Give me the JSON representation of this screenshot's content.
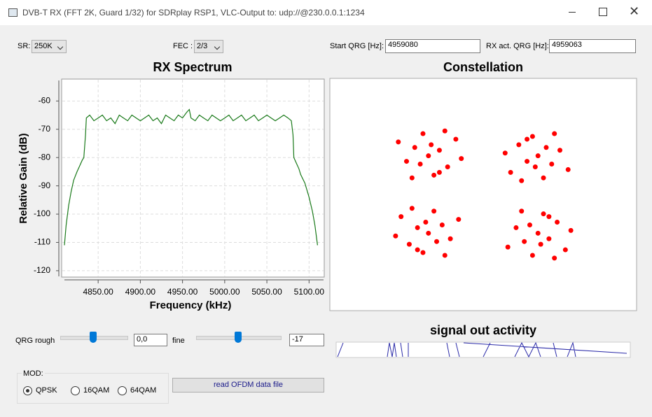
{
  "window": {
    "title": "DVB-T RX  (FFT 2K, Guard 1/32) for SDRplay RSP1, VLC-Output to: udp://@230.0.0.1:1234"
  },
  "controls": {
    "sr": {
      "label": "SR:",
      "value": "250K"
    },
    "fec": {
      "label": "FEC :",
      "value": "2/3"
    },
    "start_qrg": {
      "label": "Start QRG [Hz]:",
      "value": "4959080"
    },
    "rx_qrg": {
      "label": "RX act. QRG [Hz]:",
      "value": "4959063"
    },
    "qrg_rough": {
      "label": "QRG  rough",
      "value": "0,0"
    },
    "qrg_fine": {
      "label": "fine",
      "value": "-17"
    },
    "mod": {
      "label": "MOD:",
      "options": [
        "QPSK",
        "16QAM",
        "64QAM"
      ],
      "selected": 0
    },
    "read_button": "read OFDM data file",
    "activity_title": "signal out activity"
  },
  "spectrum": {
    "type": "line",
    "title": "RX Spectrum",
    "x_label": "Frequency (kHz)",
    "y_label": "Relative Gain (dB)",
    "x": [
      4810,
      4812,
      4815,
      4818,
      4821,
      4825,
      4828,
      4831,
      4833,
      4835,
      4836,
      4840,
      4845,
      4850,
      4855,
      4860,
      4865,
      4870,
      4875,
      4880,
      4885,
      4890,
      4895,
      4900,
      4905,
      4910,
      4915,
      4920,
      4925,
      4930,
      4935,
      4940,
      4945,
      4950,
      4955,
      4958,
      4960,
      4965,
      4970,
      4975,
      4980,
      4985,
      4990,
      4995,
      5000,
      5005,
      5010,
      5015,
      5020,
      5025,
      5030,
      5035,
      5040,
      5045,
      5050,
      5055,
      5060,
      5065,
      5070,
      5075,
      5079,
      5081,
      5082,
      5085,
      5088,
      5090,
      5095,
      5100,
      5104,
      5107,
      5110
    ],
    "series": [
      {
        "color": "#1a7a1a",
        "values": [
          -111,
          -104,
          -97,
          -92,
          -88,
          -85,
          -83,
          -81,
          -80,
          -72,
          -66,
          -65,
          -67,
          -66,
          -65,
          -67,
          -66,
          -68,
          -65,
          -66,
          -67,
          -65,
          -66,
          -67,
          -66,
          -65,
          -67,
          -66,
          -68,
          -65,
          -66,
          -67,
          -65,
          -66,
          -64,
          -63,
          -66,
          -67,
          -65,
          -66,
          -67,
          -65,
          -66,
          -67,
          -66,
          -65,
          -67,
          -66,
          -65,
          -67,
          -66,
          -65,
          -67,
          -66,
          -65,
          -66,
          -67,
          -66,
          -65,
          -66,
          -67,
          -72,
          -80,
          -82,
          -84,
          -86,
          -89,
          -94,
          -99,
          -104,
          -111
        ]
      }
    ],
    "xlim": [
      4806.7,
      5118
    ],
    "ylim": [
      -122.25,
      -52.25
    ],
    "xticks": [
      {
        "value": 4850,
        "label": "4850.00"
      },
      {
        "value": 4900,
        "label": "4900.00"
      },
      {
        "value": 4950,
        "label": "4950.00"
      },
      {
        "value": 5000,
        "label": "5000.00"
      },
      {
        "value": 5050,
        "label": "5050.00"
      },
      {
        "value": 5100,
        "label": "5100.00"
      }
    ],
    "yticks": [
      -60,
      -70,
      -80,
      -90,
      -100,
      -110,
      -120
    ],
    "grid": true
  },
  "constellation": {
    "type": "scatter",
    "title": "Constellation",
    "xlim": [
      -2.8,
      2.8
    ],
    "ylim": [
      -2.1,
      2.1
    ],
    "series": [
      {
        "color": "#ff0000",
        "x": [
          -1,
          -0.8,
          -1.25,
          -0.65,
          -1.4,
          -0.9,
          -1.1,
          -0.5,
          -1.55,
          -0.7,
          -1.3,
          -0.4,
          -0.95,
          -1.15,
          -0.8,
          1,
          0.8,
          1.25,
          0.65,
          1.4,
          0.9,
          1.1,
          0.5,
          1.55,
          0.7,
          1.3,
          0.4,
          0.95,
          1.15,
          0.8,
          -1,
          -1.2,
          -0.75,
          -1.35,
          -0.6,
          -1.1,
          -0.9,
          -1.5,
          -0.45,
          -1.3,
          -0.7,
          -1.6,
          -1.05,
          -0.85,
          -1.2,
          1,
          1.2,
          0.75,
          1.35,
          0.6,
          1.1,
          0.9,
          1.5,
          0.45,
          1.3,
          0.7,
          1.6,
          1.05,
          0.85,
          1.2
        ],
        "values": [
          0.7,
          0.8,
          0.85,
          0.5,
          0.6,
          0.35,
          1.1,
          1.0,
          0.95,
          1.15,
          0.3,
          0.65,
          0.9,
          0.55,
          0.4,
          0.7,
          0.6,
          0.55,
          0.9,
          0.8,
          1.05,
          0.3,
          0.4,
          0.45,
          0.25,
          1.1,
          0.75,
          0.5,
          0.85,
          1.0,
          -0.7,
          -0.6,
          -0.55,
          -0.9,
          -0.8,
          -1.05,
          -0.3,
          -0.4,
          -0.45,
          -0.25,
          -1.1,
          -0.75,
          -0.5,
          -0.85,
          -1.0,
          -0.7,
          -0.8,
          -0.85,
          -0.5,
          -0.6,
          -0.35,
          -1.1,
          -1.0,
          -0.95,
          -1.15,
          -0.3,
          -0.65,
          -0.9,
          -0.55,
          -0.4
        ]
      }
    ]
  }
}
